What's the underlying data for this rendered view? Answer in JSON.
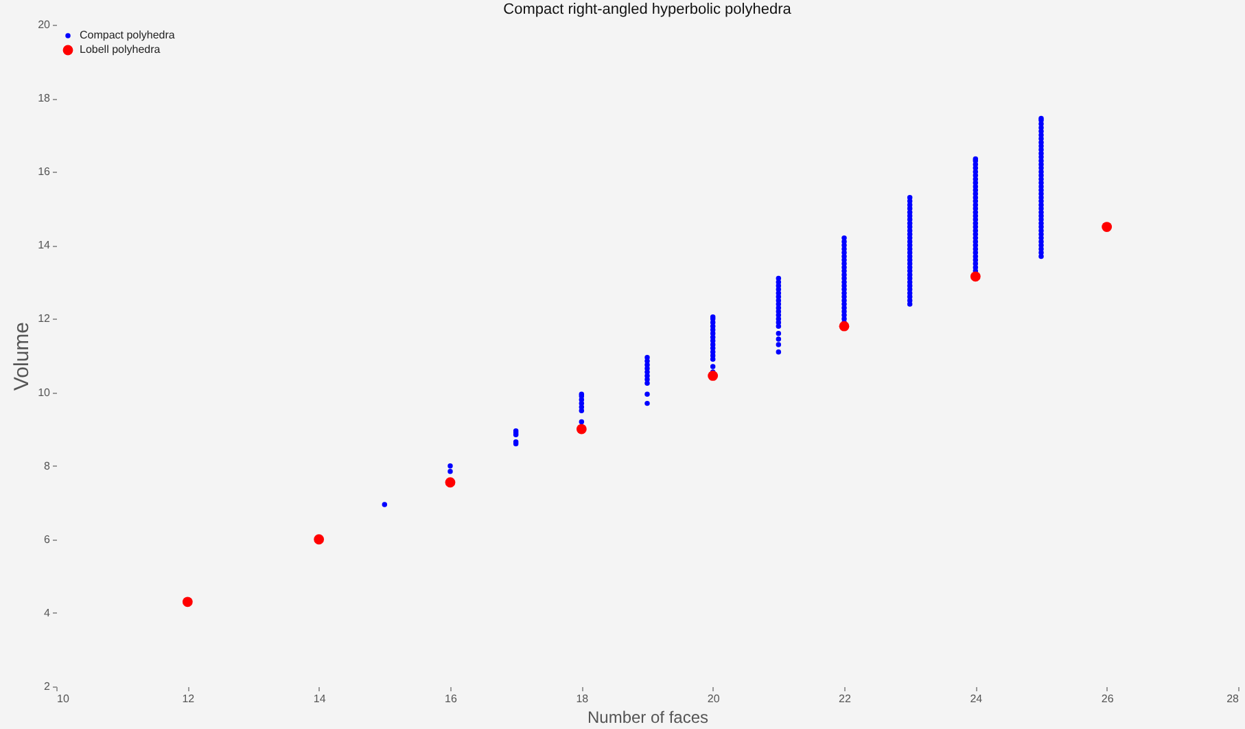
{
  "chart_data": {
    "type": "scatter",
    "title": "Compact right-angled hyperbolic polyhedra",
    "xlabel": "Number of faces",
    "ylabel": "Volume",
    "xlim": [
      10,
      28
    ],
    "xticks": [
      10,
      12,
      14,
      16,
      18,
      20,
      22,
      24,
      26,
      28
    ],
    "ylim": [
      2,
      20
    ],
    "yticks": [
      2,
      4,
      6,
      8,
      10,
      12,
      14,
      16,
      18,
      20
    ],
    "grid": false,
    "legend": "top left",
    "marker": "circle",
    "series": [
      {
        "name": "Compact polyhedra",
        "color": "#0000ff",
        "x": [
          15,
          16,
          16,
          17,
          17,
          17,
          17,
          17,
          18,
          18,
          18,
          18,
          18,
          18,
          18,
          19,
          19,
          19,
          19,
          19,
          19,
          19,
          19,
          19,
          19,
          20,
          20,
          20,
          20,
          20,
          20,
          20,
          20,
          20,
          20,
          20,
          20,
          20,
          20,
          20,
          21,
          21,
          21,
          21,
          21,
          21,
          21,
          21,
          21,
          21,
          21,
          21,
          21,
          21,
          21,
          21,
          21,
          21,
          22,
          22,
          22,
          22,
          22,
          22,
          22,
          22,
          22,
          22,
          22,
          22,
          22,
          22,
          22,
          22,
          22,
          22,
          22,
          22,
          22,
          22,
          22,
          22,
          23,
          23,
          23,
          23,
          23,
          23,
          23,
          23,
          23,
          23,
          23,
          23,
          23,
          23,
          23,
          23,
          23,
          23,
          23,
          23,
          23,
          23,
          23,
          23,
          23,
          23,
          23,
          23,
          23,
          23,
          24,
          24,
          24,
          24,
          24,
          24,
          24,
          24,
          24,
          24,
          24,
          24,
          24,
          24,
          24,
          24,
          24,
          24,
          24,
          24,
          24,
          24,
          24,
          24,
          24,
          24,
          24,
          24,
          24,
          24,
          24,
          24,
          25,
          25,
          25,
          25,
          25,
          25,
          25,
          25,
          25,
          25,
          25,
          25,
          25,
          25,
          25,
          25,
          25,
          25,
          25,
          25,
          25,
          25,
          25,
          25,
          25,
          25,
          25,
          25,
          25,
          25,
          25,
          25,
          25,
          25,
          25,
          25,
          25,
          25,
          25
        ],
        "values": [
          6.95,
          7.85,
          8.0,
          8.6,
          8.65,
          8.85,
          8.9,
          8.95,
          9.2,
          9.5,
          9.6,
          9.7,
          9.8,
          9.9,
          9.95,
          9.7,
          9.95,
          10.25,
          10.35,
          10.45,
          10.55,
          10.65,
          10.75,
          10.85,
          10.95,
          10.55,
          10.7,
          10.9,
          11.0,
          11.1,
          11.2,
          11.3,
          11.4,
          11.5,
          11.6,
          11.7,
          11.8,
          11.9,
          12.0,
          12.05,
          11.1,
          11.3,
          11.45,
          11.6,
          11.8,
          11.9,
          12.0,
          12.1,
          12.2,
          12.3,
          12.4,
          12.5,
          12.6,
          12.7,
          12.8,
          12.9,
          13.0,
          13.1,
          11.9,
          12.0,
          12.1,
          12.2,
          12.3,
          12.4,
          12.5,
          12.6,
          12.7,
          12.8,
          12.9,
          13.0,
          13.1,
          13.2,
          13.3,
          13.4,
          13.5,
          13.6,
          13.7,
          13.8,
          13.9,
          14.0,
          14.1,
          14.2,
          12.4,
          12.5,
          12.6,
          12.7,
          12.8,
          12.9,
          13.0,
          13.1,
          13.2,
          13.3,
          13.4,
          13.5,
          13.6,
          13.7,
          13.8,
          13.9,
          14.0,
          14.1,
          14.2,
          14.3,
          14.4,
          14.5,
          14.6,
          14.7,
          14.8,
          14.9,
          15.0,
          15.1,
          15.2,
          15.3,
          13.3,
          13.4,
          13.5,
          13.6,
          13.7,
          13.8,
          13.9,
          14.0,
          14.1,
          14.2,
          14.3,
          14.4,
          14.5,
          14.6,
          14.7,
          14.8,
          14.9,
          15.0,
          15.1,
          15.2,
          15.3,
          15.4,
          15.5,
          15.6,
          15.7,
          15.8,
          15.9,
          16.0,
          16.1,
          16.2,
          16.3,
          16.35,
          13.7,
          13.8,
          13.9,
          14.0,
          14.1,
          14.2,
          14.3,
          14.4,
          14.5,
          14.6,
          14.7,
          14.8,
          14.9,
          15.0,
          15.1,
          15.2,
          15.3,
          15.4,
          15.5,
          15.6,
          15.7,
          15.8,
          15.9,
          16.0,
          16.1,
          16.2,
          16.3,
          16.4,
          16.5,
          16.6,
          16.7,
          16.8,
          16.9,
          17.0,
          17.1,
          17.2,
          17.3,
          17.4,
          17.45
        ]
      },
      {
        "name": "Lobell polyhedra",
        "color": "#ff0000",
        "x": [
          12,
          14,
          16,
          18,
          20,
          22,
          24,
          26
        ],
        "values": [
          4.3,
          6.0,
          7.55,
          9.0,
          10.45,
          11.8,
          13.15,
          14.5
        ]
      }
    ]
  }
}
